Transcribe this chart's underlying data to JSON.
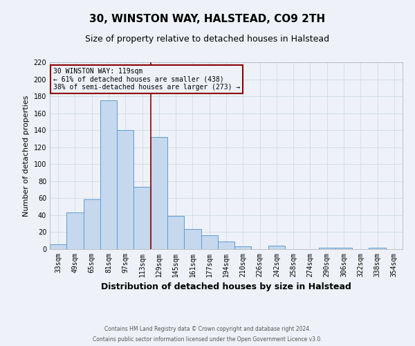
{
  "title": "30, WINSTON WAY, HALSTEAD, CO9 2TH",
  "subtitle": "Size of property relative to detached houses in Halstead",
  "xlabel": "Distribution of detached houses by size in Halstead",
  "ylabel": "Number of detached properties",
  "bin_labels": [
    "33sqm",
    "49sqm",
    "65sqm",
    "81sqm",
    "97sqm",
    "113sqm",
    "129sqm",
    "145sqm",
    "161sqm",
    "177sqm",
    "194sqm",
    "210sqm",
    "226sqm",
    "242sqm",
    "258sqm",
    "274sqm",
    "290sqm",
    "306sqm",
    "322sqm",
    "338sqm",
    "354sqm"
  ],
  "bin_values": [
    6,
    43,
    59,
    175,
    140,
    73,
    132,
    39,
    24,
    16,
    9,
    3,
    0,
    4,
    0,
    0,
    2,
    2,
    0,
    2,
    0
  ],
  "bar_color": "#c5d8ed",
  "bar_edge_color": "#5b9bd5",
  "vline_x": 5.5,
  "vline_color": "#8b0000",
  "ylim": [
    0,
    220
  ],
  "yticks": [
    0,
    20,
    40,
    60,
    80,
    100,
    120,
    140,
    160,
    180,
    200,
    220
  ],
  "annotation_title": "30 WINSTON WAY: 119sqm",
  "annotation_line1": "← 61% of detached houses are smaller (438)",
  "annotation_line2": "38% of semi-detached houses are larger (273) →",
  "annotation_box_color": "#8b0000",
  "grid_color": "#c8d4e0",
  "footer1": "Contains HM Land Registry data © Crown copyright and database right 2024.",
  "footer2": "Contains public sector information licensed under the Open Government Licence v3.0.",
  "bg_color": "#eef2f8",
  "title_fontsize": 11,
  "subtitle_fontsize": 9,
  "ylabel_fontsize": 8,
  "xlabel_fontsize": 9,
  "tick_fontsize": 7,
  "footer_fontsize": 5.5
}
